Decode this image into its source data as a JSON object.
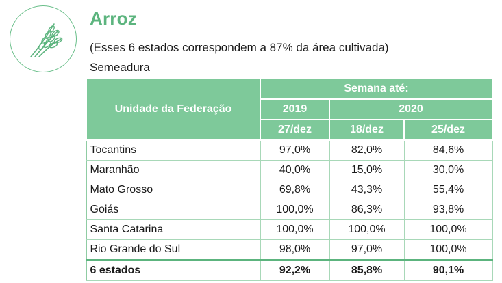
{
  "header": {
    "icon": "rice-plant-icon",
    "title": "Arroz",
    "subtitle": "(Esses 6 estados correspondem a 87% da área cultivada)",
    "section": "Semeadura"
  },
  "table": {
    "col_header": "Unidade da Federação",
    "week_header": "Semana até:",
    "years": [
      "2019",
      "2020"
    ],
    "dates": [
      "27/dez",
      "18/dez",
      "25/dez"
    ],
    "rows": [
      {
        "name": "Tocantins",
        "values": [
          "97,0%",
          "82,0%",
          "84,6%"
        ]
      },
      {
        "name": "Maranhão",
        "values": [
          "40,0%",
          "15,0%",
          "30,0%"
        ]
      },
      {
        "name": "Mato Grosso",
        "values": [
          "69,8%",
          "43,3%",
          "55,4%"
        ]
      },
      {
        "name": "Goiás",
        "values": [
          "100,0%",
          "86,3%",
          "93,8%"
        ]
      },
      {
        "name": "Santa Catarina",
        "values": [
          "100,0%",
          "100,0%",
          "100,0%"
        ]
      },
      {
        "name": "Rio Grande do Sul",
        "values": [
          "98,0%",
          "97,0%",
          "100,0%"
        ]
      }
    ],
    "total": {
      "name": "6 estados",
      "values": [
        "92,2%",
        "85,8%",
        "90,1%"
      ]
    }
  },
  "colors": {
    "accent": "#5cb47e",
    "header_bg": "#7ec99a"
  }
}
